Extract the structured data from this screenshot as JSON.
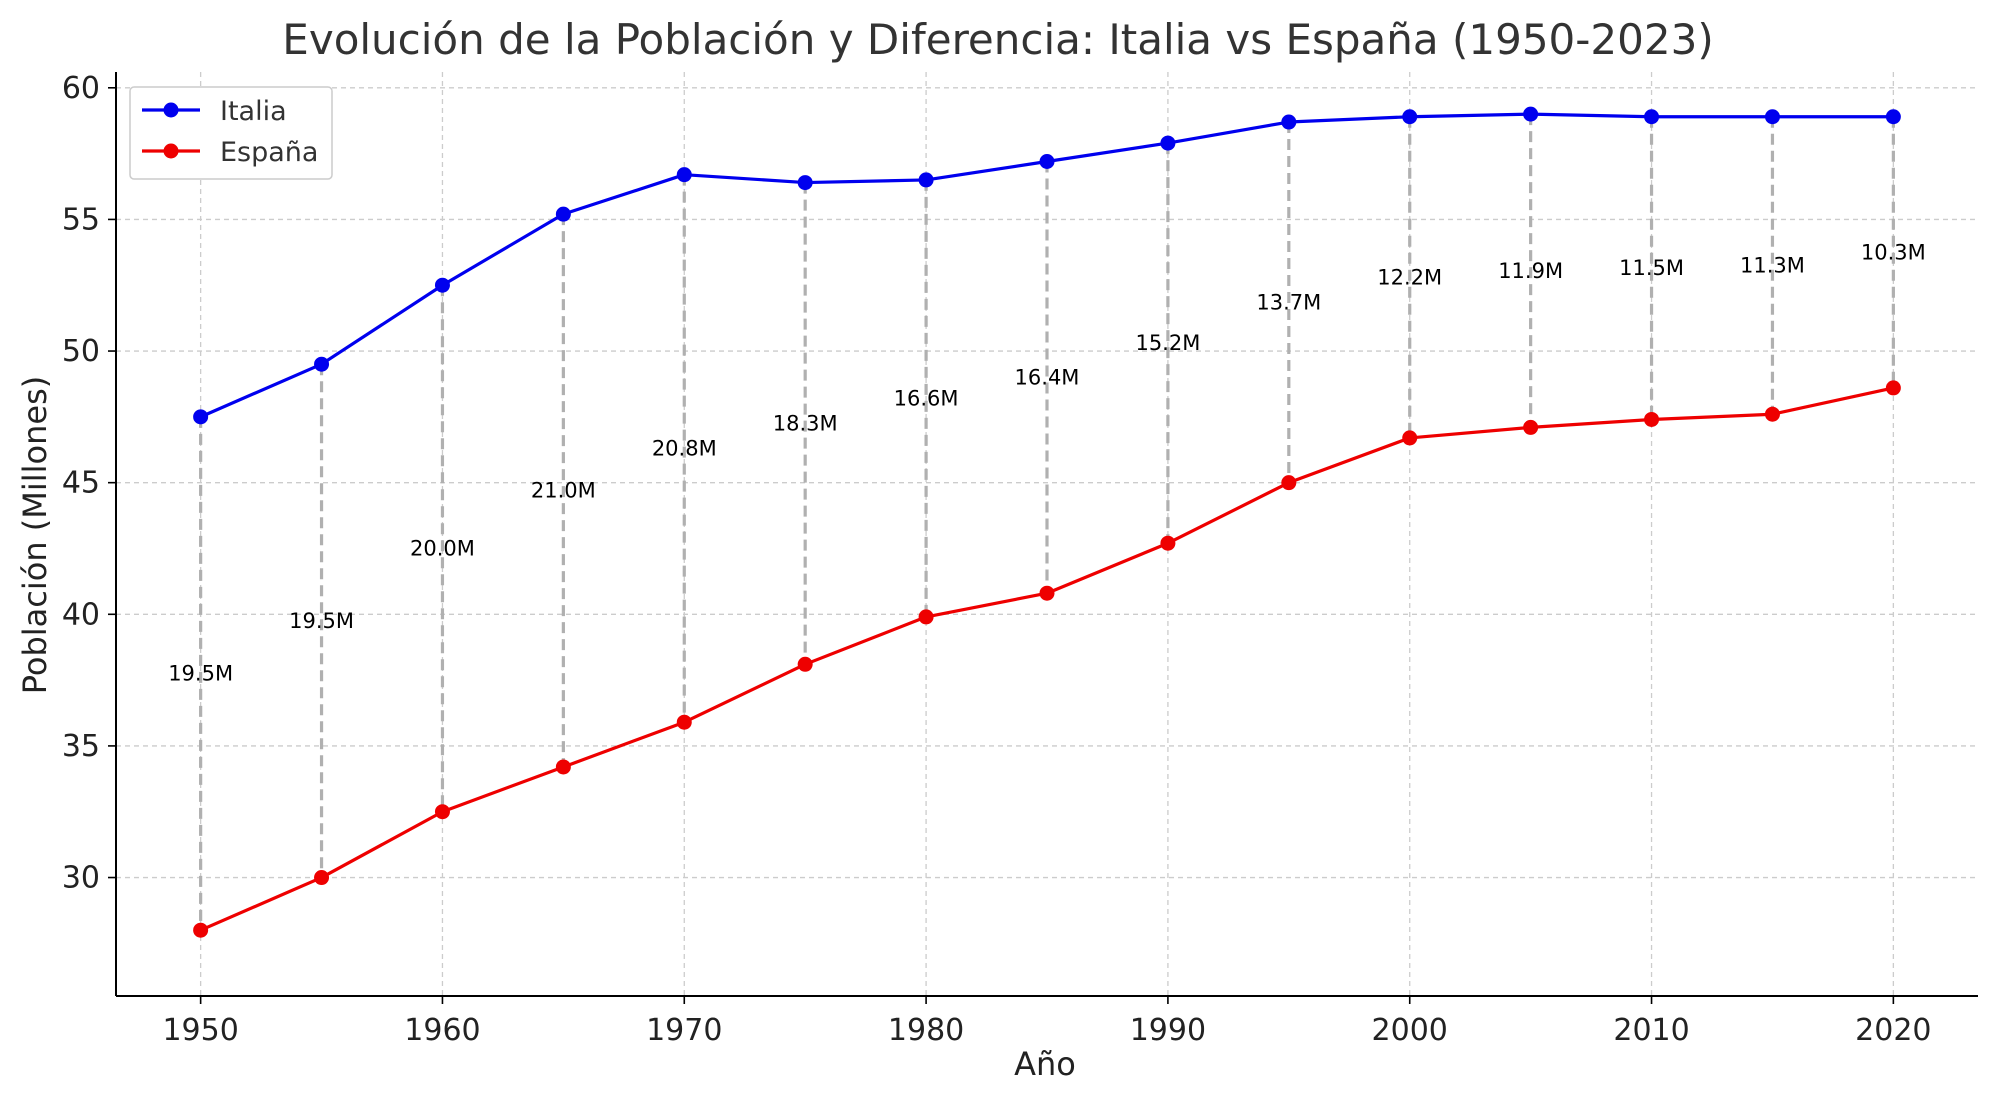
{
  "chart_data": {
    "type": "line",
    "title": "Evolución de la Población y Diferencia: Italia vs España (1950-2023)",
    "xlabel": "Año",
    "ylabel": "Población (Millones)",
    "x": [
      1950,
      1955,
      1960,
      1965,
      1970,
      1975,
      1980,
      1985,
      1990,
      1995,
      2000,
      2005,
      2010,
      2015,
      2020
    ],
    "xlim": [
      1946.5,
      2023.5
    ],
    "ylim": [
      25.5,
      60.6
    ],
    "x_ticks": [
      1950,
      1960,
      1970,
      1980,
      1990,
      2000,
      2010,
      2020
    ],
    "y_ticks": [
      30,
      35,
      40,
      45,
      50,
      55,
      60
    ],
    "grid": true,
    "legend_position": "top-left",
    "series": [
      {
        "name": "Italia",
        "color": "#0000ee",
        "values": [
          47.5,
          49.5,
          52.5,
          55.2,
          56.7,
          56.4,
          56.5,
          57.2,
          57.9,
          58.7,
          58.9,
          59.0,
          58.9,
          58.9,
          58.9
        ]
      },
      {
        "name": "España",
        "color": "#ee0000",
        "values": [
          28.0,
          30.0,
          32.5,
          34.2,
          35.9,
          38.1,
          39.9,
          40.8,
          42.7,
          45.0,
          46.7,
          47.1,
          47.4,
          47.6,
          48.6
        ]
      }
    ],
    "difference_labels": [
      "19.5M",
      "19.5M",
      "20.0M",
      "21.0M",
      "20.8M",
      "18.3M",
      "16.6M",
      "16.4M",
      "15.2M",
      "13.7M",
      "12.2M",
      "11.9M",
      "11.5M",
      "11.3M",
      "10.3M"
    ],
    "colors": {
      "connector": "#b0b0b0",
      "grid": "#cccccc",
      "axis": "#000000"
    }
  }
}
